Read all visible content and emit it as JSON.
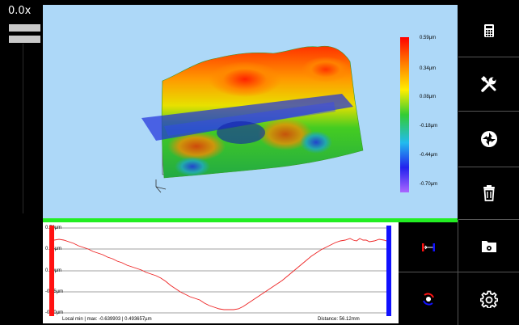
{
  "zoom": {
    "label": "0.0x"
  },
  "color_scale": {
    "labels": [
      "0.59µm",
      "0.34µm",
      "0.08µm",
      "-0.18µm",
      "-0.44µm",
      "-0.70µm"
    ]
  },
  "profile": {
    "y_labels": [
      "0.70µm",
      "0.35µm",
      "0.00µm",
      "-0.35µm",
      "-0.70µm"
    ],
    "footer_min_max": "Local min | max: -0.639903 | 0.493657µm",
    "footer_distance": "Distance: 56.12mm"
  },
  "sidebar": {
    "items": [
      {
        "icon": "calculator-icon"
      },
      {
        "icon": "tools-icon"
      },
      {
        "icon": "camera-aperture-icon"
      },
      {
        "icon": "trash-icon"
      },
      {
        "icon": "folder-settings-icon"
      },
      {
        "icon": "gear-icon"
      }
    ],
    "extra": [
      {
        "icon": "profile-markers-icon"
      },
      {
        "icon": "rotate-camera-icon"
      }
    ]
  },
  "colors": {
    "accent_green": "#22ee22",
    "marker_red": "#ff1111",
    "marker_blue": "#1111ff",
    "profile_line": "#ee2222"
  }
}
